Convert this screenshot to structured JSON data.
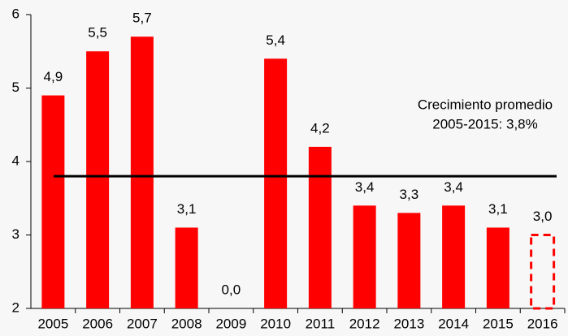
{
  "chart_data": {
    "type": "bar",
    "categories": [
      "2005",
      "2006",
      "2007",
      "2008",
      "2009",
      "2010",
      "2011",
      "2012",
      "2013",
      "2014",
      "2015",
      "2016"
    ],
    "values": [
      4.9,
      5.5,
      5.7,
      3.1,
      0,
      5.4,
      4.2,
      3.4,
      3.3,
      3.4,
      3.1,
      3.0
    ],
    "value_labels": [
      "4,9",
      "5,5",
      "5,7",
      "3,1",
      "0,0",
      "5,4",
      "4,2",
      "3,4",
      "3,3",
      "3,4",
      "3,1",
      "3,0"
    ],
    "bar_styles": [
      "solid",
      "solid",
      "solid",
      "solid",
      "solid",
      "solid",
      "solid",
      "solid",
      "solid",
      "solid",
      "solid",
      "dashed"
    ],
    "color": "#ff0000",
    "ylim": [
      2,
      6
    ],
    "yticks": [
      2,
      3,
      4,
      5,
      6
    ],
    "reference_line": {
      "value": 3.8,
      "color": "#000000",
      "label": [
        "Crecimiento  promedio",
        "2005-2015:  3,8%"
      ]
    }
  }
}
